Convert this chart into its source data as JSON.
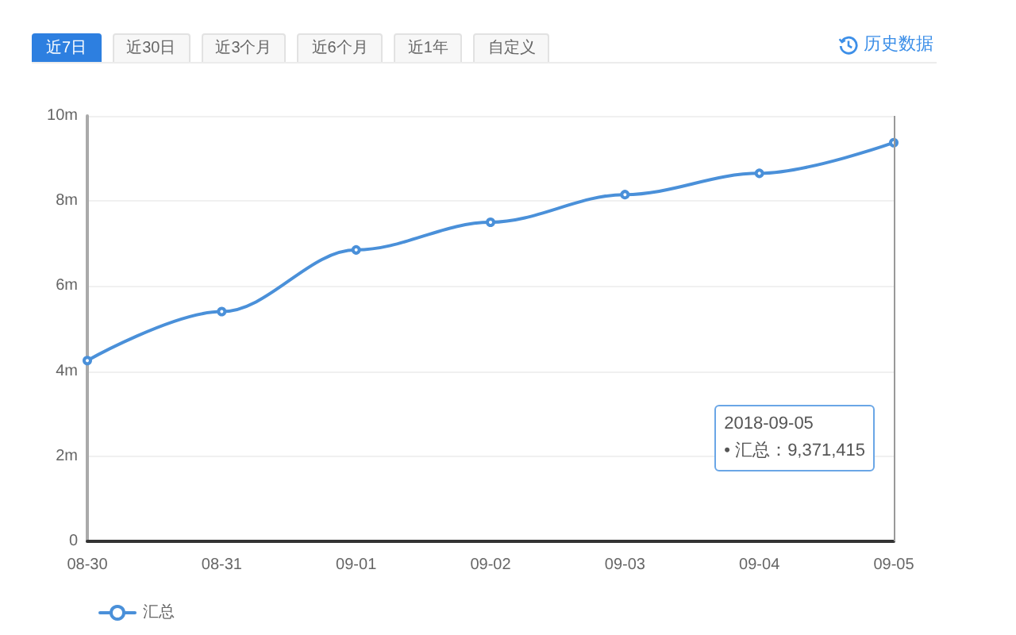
{
  "chart_data": {
    "type": "line",
    "categories": [
      "08-30",
      "08-31",
      "09-01",
      "09-02",
      "09-03",
      "09-04",
      "09-05"
    ],
    "series": [
      {
        "name": "汇总",
        "color": "#4a90d9",
        "values": [
          4250000,
          5400000,
          6850000,
          7500000,
          8150000,
          8650000,
          9371415
        ]
      }
    ],
    "ylim": [
      0,
      10000000
    ],
    "yticks": [
      0,
      {
        "value": 2000000,
        "label": "2m"
      },
      {
        "value": 4000000,
        "label": "4m"
      },
      {
        "value": 6000000,
        "label": "6m"
      },
      {
        "value": 8000000,
        "label": "8m"
      },
      {
        "value": 10000000,
        "label": "10m"
      }
    ],
    "grid": "y",
    "legend": "bottom",
    "marker": "circle",
    "line_style": "solid",
    "ref_lines": [
      {
        "axis": "x",
        "value": "09-05",
        "color": "#999999"
      }
    ],
    "annotations": [
      "近7日",
      "近30日",
      "近3个月",
      "近6个月",
      "近1年",
      "自定义",
      "历史数据",
      "2018-09-05\n• 汇总：9,371,415"
    ]
  }
}
